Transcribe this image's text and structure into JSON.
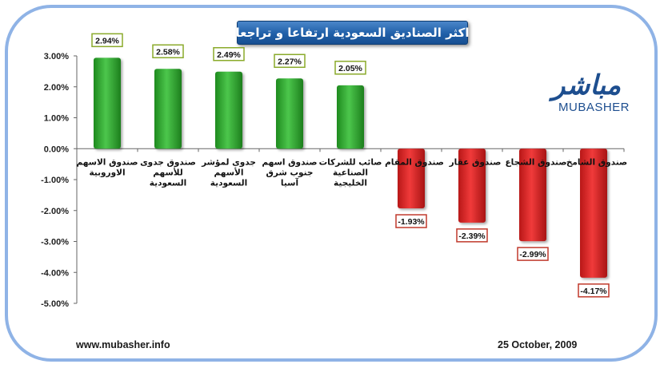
{
  "title": "اكثر الصناديق السعودية ارتفاعا و تراجعا",
  "logo": {
    "arabic": "مباشر",
    "english": "MUBASHER"
  },
  "footer": {
    "website": "www.mubasher.info",
    "date": "25 October, 2009"
  },
  "colors": {
    "positive": "#2fa52f",
    "negative": "#e02a2a",
    "positive_label_border": "#8aaa2a",
    "negative_label_border": "#c0392b",
    "title_bg": "#1f5fa8",
    "frame": "#8fb3e6"
  },
  "chart_data": {
    "type": "bar",
    "categories": [
      [
        "صندوق الاسهم",
        "الاوروبية"
      ],
      [
        "صندوق جدوى",
        "للأسهم",
        "السعودية"
      ],
      [
        "جدوى لمؤشر",
        "الأسهم",
        "السعودية"
      ],
      [
        "صندوق اسهم",
        "جنوب شرق",
        "آسيا"
      ],
      [
        "صائب للشركات",
        "الصناعية",
        "الخليجية"
      ],
      [
        "صندوق المقام"
      ],
      [
        "صندوق عقار"
      ],
      [
        "صندوق الشجاع"
      ],
      [
        "صندوق الشامخ"
      ]
    ],
    "values": [
      2.94,
      2.58,
      2.49,
      2.27,
      2.05,
      -1.93,
      -2.39,
      -2.99,
      -4.17
    ],
    "data_labels": [
      "2.94%",
      "2.58%",
      "2.49%",
      "2.27%",
      "2.05%",
      "-1.93%",
      "-2.39%",
      "-2.99%",
      "-4.17%"
    ],
    "y_ticks": [
      3,
      2,
      1,
      0,
      -1,
      -2,
      -3,
      -4,
      -5
    ],
    "y_tick_labels": [
      "3.00%",
      "2.00%",
      "1.00%",
      "0.00%",
      "-1.00%",
      "-2.00%",
      "-3.00%",
      "-4.00%",
      "-5.00%"
    ],
    "ylim": [
      -5,
      3
    ],
    "grid": false,
    "legend": "none",
    "xlabel": "",
    "ylabel": ""
  }
}
